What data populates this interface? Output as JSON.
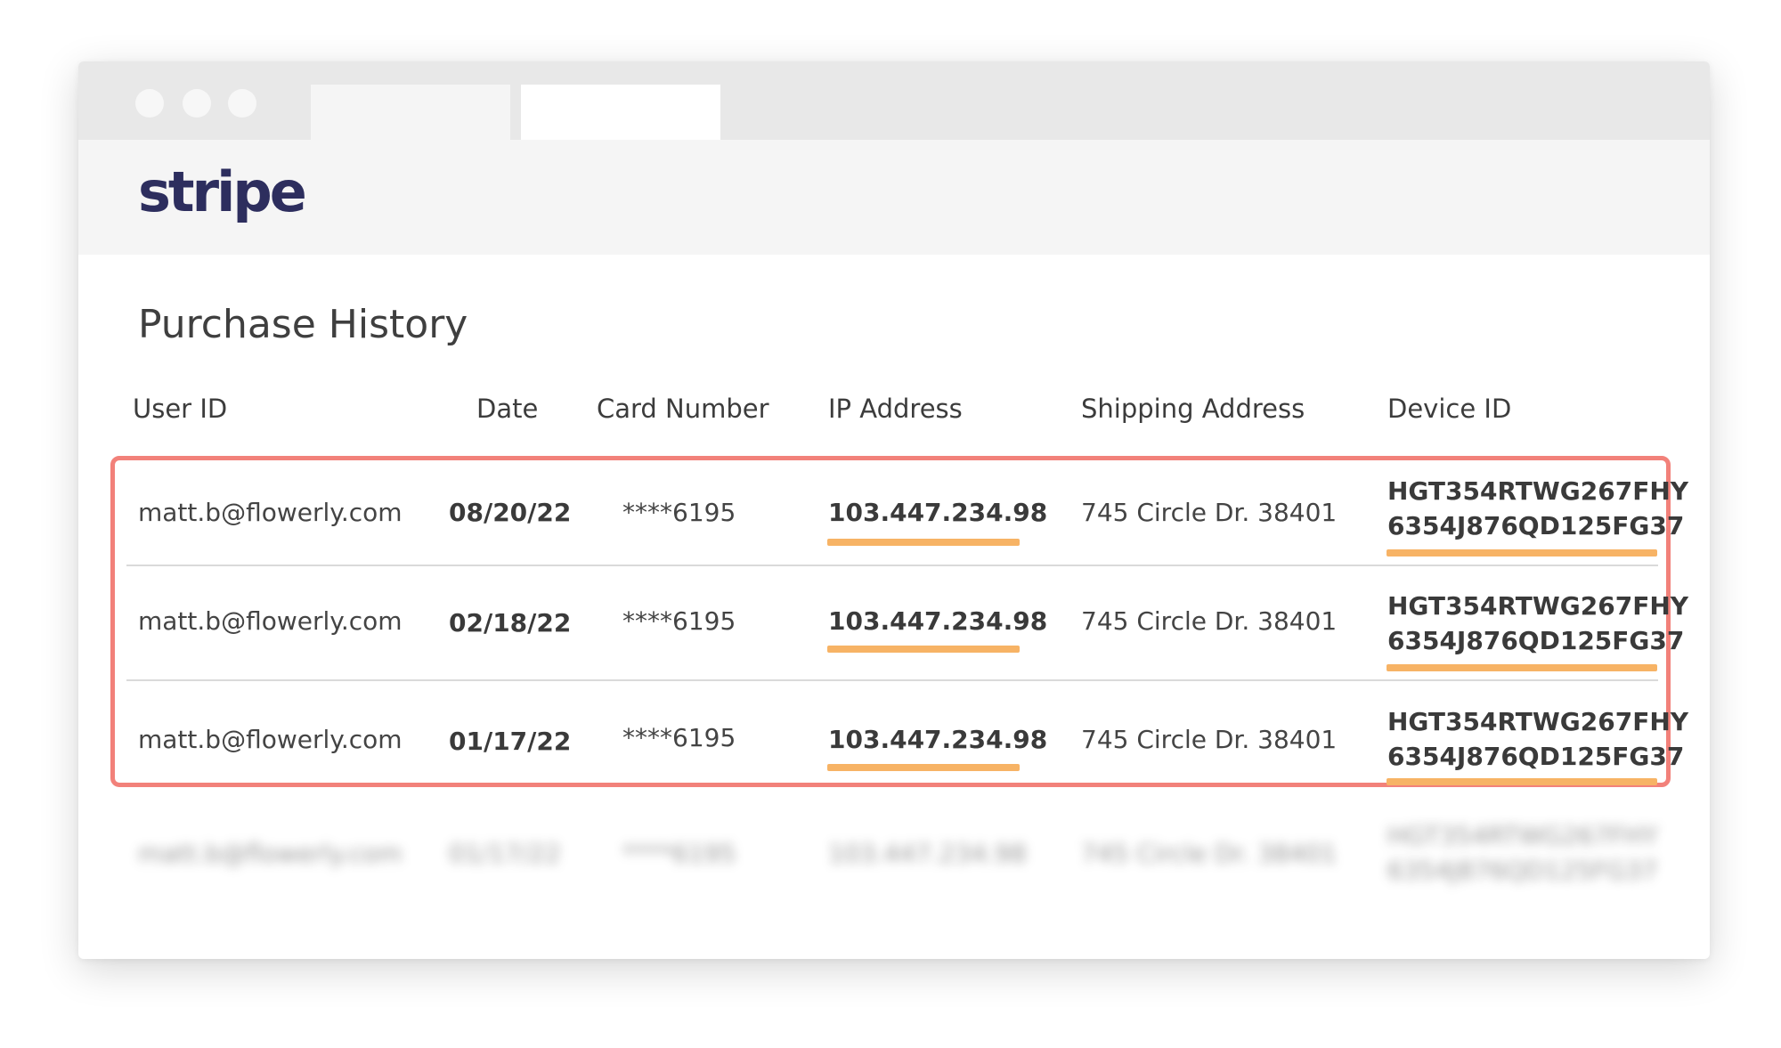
{
  "app": {
    "logo_text": "stripe"
  },
  "window": {
    "dots": [
      "close",
      "minimize",
      "maximize"
    ],
    "tabs": [
      {
        "label": ""
      },
      {
        "label": ""
      }
    ]
  },
  "page": {
    "title": "Purchase History"
  },
  "table": {
    "headers": [
      "User ID",
      "Date",
      "Card Number",
      "IP Address",
      "Shipping Address",
      "Device ID"
    ],
    "rows": [
      {
        "user_id": "matt.b@flowerly.com",
        "date": "08/20/22",
        "card": "****6195",
        "ip": "103.447.234.98",
        "shipping": "745 Circle Dr. 38401",
        "device_line1": "HGT354RTWG267FHY",
        "device_line2": "6354J876QD125FG37"
      },
      {
        "user_id": "matt.b@flowerly.com",
        "date": "02/18/22",
        "card": "****6195",
        "ip": "103.447.234.98",
        "shipping": "745 Circle Dr. 38401",
        "device_line1": "HGT354RTWG267FHY",
        "device_line2": "6354J876QD125FG37"
      },
      {
        "user_id": "matt.b@flowerly.com",
        "date": "01/17/22",
        "card": "****6195",
        "ip": "103.447.234.98",
        "shipping": "745 Circle Dr. 38401",
        "device_line1": "HGT354RTWG267FHY",
        "device_line2": "6354J876QD125FG37"
      },
      {
        "user_id": "matt.b@flowerly.com",
        "date": "01/17/22",
        "card": "****6195",
        "ip": "103.447.234.98",
        "shipping": "745 Circle Dr. 38401",
        "device_line1": "HGT354RTWG267FHY",
        "device_line2": "6354J876QD125FG37"
      }
    ]
  },
  "colors": {
    "logo": "#2d2e5e",
    "highlight_border": "#f2817a",
    "underline": "#f7b365"
  }
}
